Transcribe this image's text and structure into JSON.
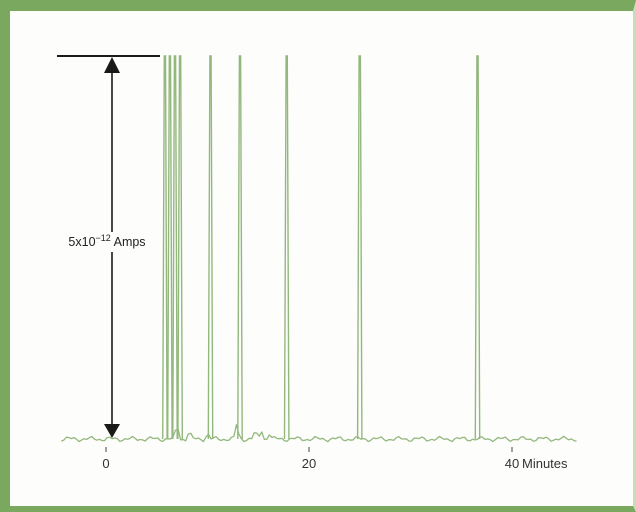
{
  "chart_data": {
    "type": "line",
    "title": "",
    "xlabel": "Minutes",
    "ylabel": "",
    "x_ticks": [
      {
        "value": 0,
        "label": "0"
      },
      {
        "value": 20,
        "label": "20"
      },
      {
        "value": 40,
        "label": "40"
      }
    ],
    "xlim": [
      -4.5,
      47
    ],
    "ylim": [
      0,
      1
    ],
    "scale_bar": {
      "base": "5x10",
      "exponent": "−12",
      "unit": "Amps"
    },
    "series": [
      {
        "peaks": [
          {
            "x": 5.8,
            "height": 1.0
          },
          {
            "x": 6.3,
            "height": 1.0
          },
          {
            "x": 6.8,
            "height": 1.0
          },
          {
            "x": 7.3,
            "height": 1.0
          },
          {
            "x": 10.3,
            "height": 1.0
          },
          {
            "x": 13.2,
            "height": 1.0
          },
          {
            "x": 17.8,
            "height": 1.0
          },
          {
            "x": 25.0,
            "height": 1.0
          },
          {
            "x": 36.6,
            "height": 1.0
          }
        ],
        "minor_peaks": [
          {
            "x": 7.0,
            "height": 0.04
          },
          {
            "x": 8.2,
            "height": 0.02
          },
          {
            "x": 10.0,
            "height": 0.015
          },
          {
            "x": 12.9,
            "height": 0.04
          },
          {
            "x": 14.7,
            "height": 0.02
          },
          {
            "x": 15.3,
            "height": 0.025
          },
          {
            "x": 16.1,
            "height": 0.015
          }
        ]
      }
    ],
    "grid": false,
    "colors": {
      "trace": "#93b87e",
      "frame": "#79a85e",
      "scale_bar": "#1a1a1a"
    }
  }
}
